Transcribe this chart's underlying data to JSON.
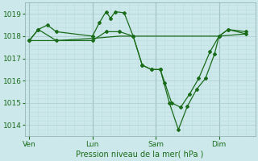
{
  "bg_color": "#cce8ea",
  "grid_color_major": "#aacccc",
  "grid_color_minor": "#bbdddd",
  "line_color": "#1a6b1a",
  "marker_color": "#1a6b1a",
  "xlabel": "Pression niveau de la mer( hPa )",
  "ylim": [
    1013.5,
    1019.5
  ],
  "yticks": [
    1014,
    1015,
    1016,
    1017,
    1018,
    1019
  ],
  "xtick_labels": [
    "Ven",
    "Lun",
    "Sam",
    "Dim"
  ],
  "xtick_positions": [
    0,
    28,
    56,
    84
  ],
  "vline_positions": [
    0,
    28,
    56,
    84
  ],
  "xlim": [
    -2,
    100
  ],
  "series1_x": [
    0,
    4,
    8,
    12,
    28,
    31,
    34,
    36,
    38,
    42,
    46,
    50,
    54,
    58,
    60,
    63,
    67,
    71,
    75,
    80,
    84,
    88,
    96
  ],
  "series1_y": [
    1017.8,
    1018.3,
    1018.5,
    1018.2,
    1018.0,
    1018.6,
    1019.1,
    1018.8,
    1019.1,
    1019.05,
    1018.0,
    1016.7,
    1016.5,
    1016.5,
    1015.9,
    1015.0,
    1014.8,
    1015.4,
    1016.1,
    1017.3,
    1018.0,
    1018.3,
    1018.2
  ],
  "series2_x": [
    0,
    4,
    12,
    28,
    34,
    40,
    46,
    50,
    54,
    58,
    62,
    66,
    70,
    74,
    78,
    82,
    84,
    88,
    96
  ],
  "series2_y": [
    1017.8,
    1018.3,
    1017.8,
    1017.8,
    1018.2,
    1018.2,
    1018.0,
    1016.7,
    1016.5,
    1016.5,
    1015.0,
    1013.8,
    1014.85,
    1015.6,
    1016.1,
    1017.2,
    1018.0,
    1018.3,
    1018.1
  ],
  "series3_x": [
    0,
    12,
    28,
    40,
    46,
    54,
    60,
    70,
    78,
    84,
    96
  ],
  "series3_y": [
    1017.8,
    1017.8,
    1017.9,
    1018.0,
    1018.0,
    1018.0,
    1018.0,
    1018.0,
    1018.0,
    1018.0,
    1018.1
  ],
  "figsize": [
    3.2,
    2.0
  ],
  "dpi": 100
}
